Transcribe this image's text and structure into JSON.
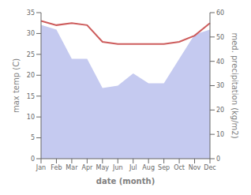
{
  "chart_data": {
    "type": "line",
    "categories": [
      "Jan",
      "Feb",
      "Mar",
      "Apr",
      "May",
      "Jun",
      "Jul",
      "Aug",
      "Sep",
      "Oct",
      "Nov",
      "Dec"
    ],
    "xlabel": "date (month)",
    "ylabel": "max temp (C)",
    "y2label": "med. precipitation (kg/m2)",
    "ylim": [
      0,
      35
    ],
    "yticks": [
      0,
      5,
      10,
      15,
      20,
      25,
      30,
      35
    ],
    "y2lim": [
      0,
      60
    ],
    "y2ticks": [
      0,
      10,
      20,
      30,
      40,
      50,
      60
    ],
    "grid": false,
    "series": [
      {
        "type": "area",
        "axis": "y2",
        "color": "#c5caf0",
        "values": [
          55,
          53,
          41,
          41,
          29,
          30,
          35,
          31,
          31,
          41,
          51,
          53
        ]
      },
      {
        "type": "line",
        "color": "#cd5c5c",
        "values": [
          33.0,
          32.0,
          32.5,
          32.0,
          28.0,
          27.5,
          27.5,
          27.5,
          27.5,
          28.0,
          29.5,
          32.5
        ]
      }
    ]
  }
}
